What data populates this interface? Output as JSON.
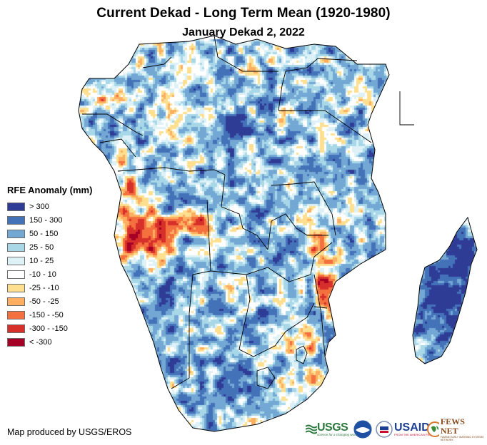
{
  "header": {
    "title": "Current Dekad - Long Term Mean (1920-1980)",
    "subtitle": "January Dekad 2, 2022"
  },
  "legend": {
    "title": "RFE Anomaly (mm)",
    "classes": [
      {
        "label": "> 300",
        "color": "#2f3c96"
      },
      {
        "label": "150 - 300",
        "color": "#4472b8"
      },
      {
        "label": "50 - 150",
        "color": "#74a8d4"
      },
      {
        "label": "25 - 50",
        "color": "#a8d8e8"
      },
      {
        "label": "10 - 25",
        "color": "#ddf1f7"
      },
      {
        "label": "-10 - 10",
        "color": "#ffffff"
      },
      {
        "label": "-25 - -10",
        "color": "#fedf8f"
      },
      {
        "label": "-50 - -25",
        "color": "#fdae61"
      },
      {
        "label": "-150 - -50",
        "color": "#f4703e"
      },
      {
        "label": "-300 - -150",
        "color": "#d7302a"
      },
      {
        "label": "< -300",
        "color": "#a50026"
      }
    ]
  },
  "credit": "Map produced by USGS/EROS",
  "logos": {
    "usgs": {
      "name": "USGS",
      "tagline": "science for a changing world"
    },
    "noaa": {
      "name": "NOAA"
    },
    "usaid": {
      "name": "USAID",
      "tagline": "FROM THE AMERICAN PEOPLE"
    },
    "fews": {
      "name": "FEWS NET",
      "tagline": "FAMINE EARLY WARNING SYSTEMS NETWORK"
    }
  },
  "map": {
    "region": "Southern and Central Africa",
    "variable": "Rainfall Estimate (RFE) anomaly",
    "units": "mm"
  }
}
